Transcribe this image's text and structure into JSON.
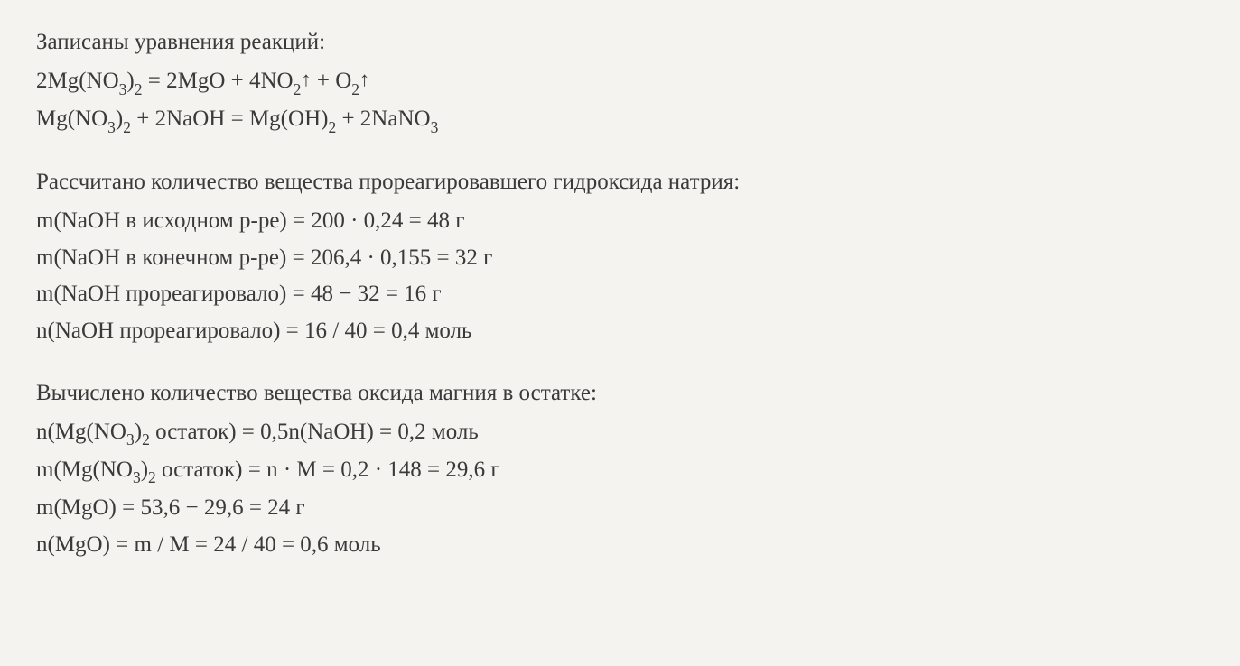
{
  "section1": {
    "heading": "Записаны уравнения реакций:",
    "eq1": {
      "t1": "2Mg(NO",
      "s1": "3",
      "t2": ")",
      "s2": "2",
      "t3": " = 2MgO + 4NO",
      "s3": "2",
      "arrow1": "↑",
      "t4": " + O",
      "s4": "2",
      "arrow2": "↑"
    },
    "eq2": {
      "t1": "Mg(NO",
      "s1": "3",
      "t2": ")",
      "s2": "2",
      "t3": " + 2NaOH = Mg(OH)",
      "s3": "2",
      "t4": " + 2NaNO",
      "s4": "3"
    }
  },
  "section2": {
    "heading": "Рассчитано количество вещества прореагировавшего гидроксида натрия:",
    "lines": [
      "m(NaOH в исходном р-ре) = 200 · 0,24 = 48 г",
      "m(NaOH в конечном р-ре) = 206,4 · 0,155 = 32 г",
      "m(NaOH прореагировало) = 48 − 32 = 16 г",
      "n(NaOH прореагировало) = 16 / 40 = 0,4 моль"
    ]
  },
  "section3": {
    "heading": "Вычислено количество вещества оксида магния в остатке:",
    "line1": {
      "t1": "n(Mg(NO",
      "s1": "3",
      "t2": ")",
      "s2": "2",
      "t3": " остаток) = 0,5n(NaOH) = 0,2 моль"
    },
    "line2": {
      "t1": "m(Mg(NO",
      "s1": "3",
      "t2": ")",
      "s2": "2",
      "t3": " остаток) = n · M = 0,2 · 148 = 29,6 г"
    },
    "line3": "m(MgO) = 53,6 − 29,6 = 24 г",
    "line4": "n(MgO) = m / M = 24 / 40 = 0,6 моль"
  }
}
